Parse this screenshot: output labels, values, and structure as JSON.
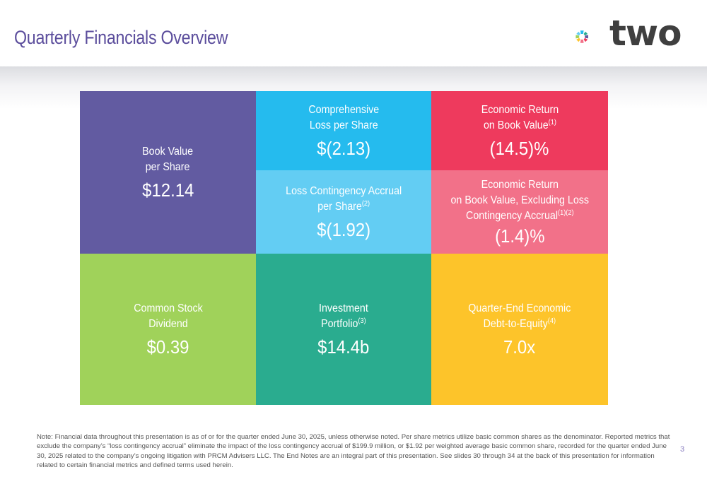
{
  "header": {
    "title": "Quarterly Financials Overview",
    "logo_text": "two"
  },
  "tiles": {
    "book_value": {
      "label_line1": "Book Value",
      "label_line2": "per Share",
      "value": "$12.14",
      "color": "#625ba1"
    },
    "comprehensive_loss": {
      "label_line1": "Comprehensive",
      "label_line2": "Loss per Share",
      "value": "$(2.13)",
      "color": "#25bbee"
    },
    "economic_return": {
      "label_line1": "Economic Return",
      "label_line2": "on Book Value",
      "sup": "(1)",
      "value": "(14.5)%",
      "color": "#ee3a5d"
    },
    "loss_contingency": {
      "label_line1": "Loss Contingency Accrual",
      "label_line2": "per Share",
      "sup": "(2)",
      "value": "$(1.92)",
      "color": "#63cdf3"
    },
    "economic_return_excl": {
      "label_line1": "Economic Return",
      "label_line2": "on Book Value, Excluding Loss",
      "label_line3": "Contingency Accrual",
      "sup": "(1)(2)",
      "value": "(1.4)%",
      "color": "#f27189"
    },
    "dividend": {
      "label_line1": "Common Stock",
      "label_line2": "Dividend",
      "value": "$0.39",
      "color": "#a0d25a"
    },
    "investment_portfolio": {
      "label_line1": "Investment",
      "label_line2": "Portfolio",
      "sup": "(3)",
      "value": "$14.4b",
      "color": "#2aac8f"
    },
    "debt_to_equity": {
      "label_line1": "Quarter-End Economic",
      "label_line2": "Debt-to-Equity",
      "sup": "(4)",
      "value": "7.0x",
      "color": "#fdc42a"
    }
  },
  "footer": {
    "note": "Note:  Financial data throughout this presentation is as of or for the quarter ended June 30, 2025, unless otherwise noted. Per share metrics utilize basic common shares as the denominator. Reported metrics that exclude the company’s “loss contingency accrual” eliminate the impact of the loss contingency accrual of $199.9 million, or $1.92 per weighted average basic common share, recorded for the quarter ended June 30, 2025 related to the company’s ongoing litigation with PRCM Advisers LLC. The End Notes are an integral part of this presentation. See slides 30 through 34 at the back of this presentation for information related to certain financial metrics and defined terms used herein.",
    "page_number": "3"
  }
}
